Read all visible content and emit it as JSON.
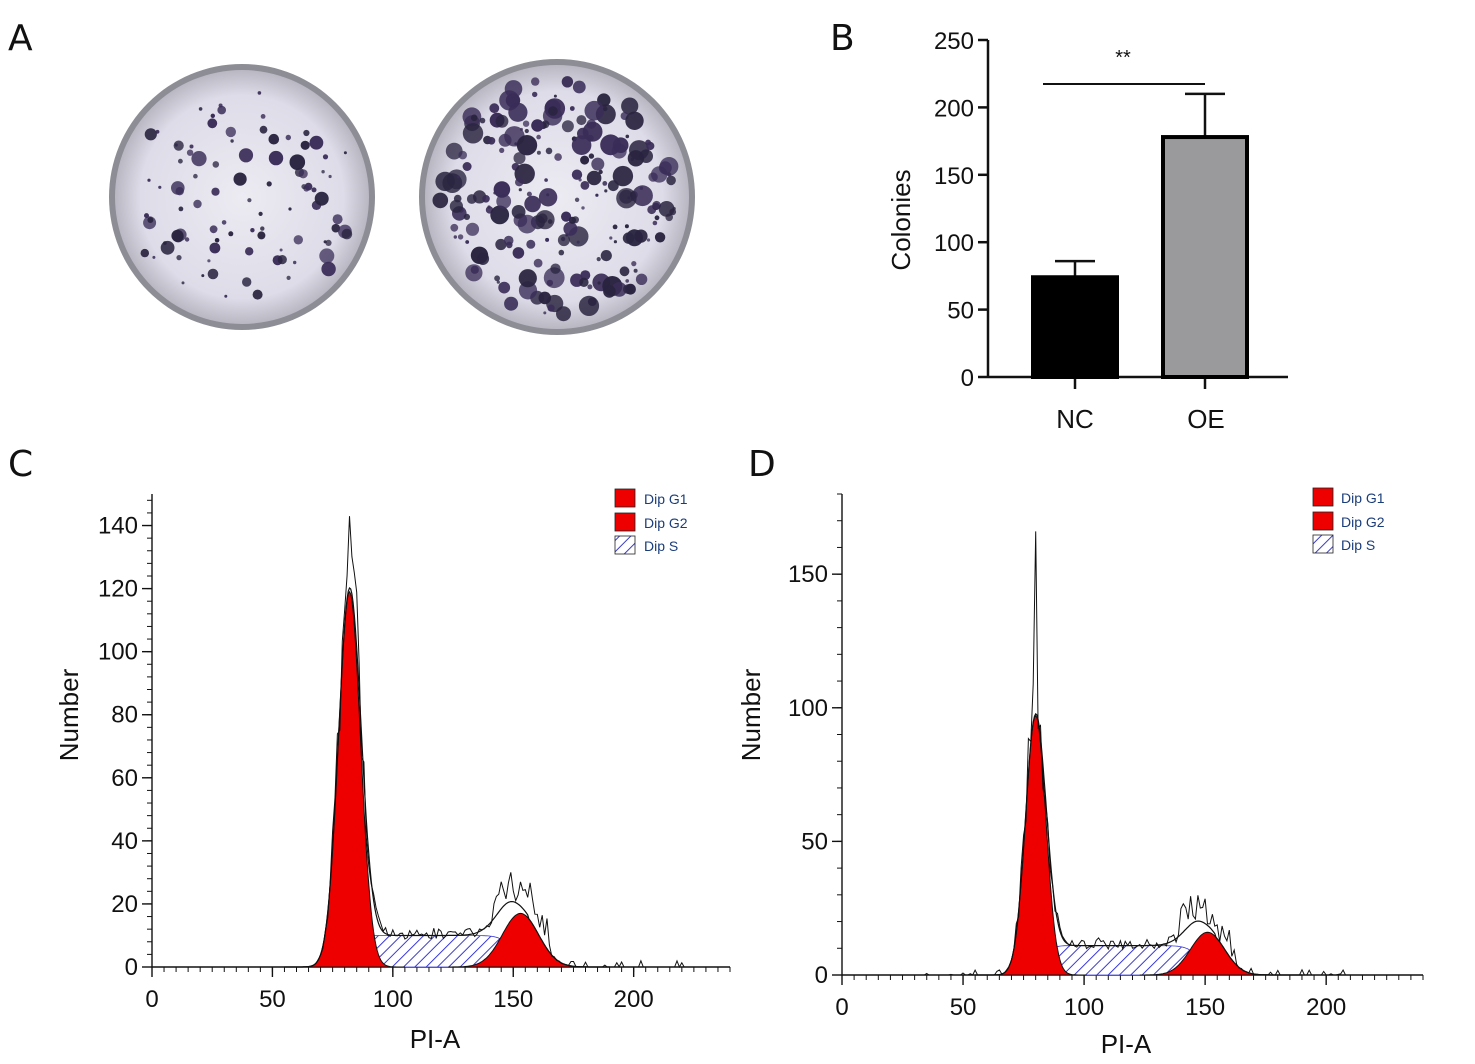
{
  "panel_labels": [
    "A",
    "B",
    "C",
    "D"
  ],
  "colors": {
    "plate_rim": "#9a9aa2",
    "plate_fill": "#e6e4ee",
    "colony": "#3a2d58",
    "nc_bar": "#000000",
    "oe_bar": "#9a9a9c",
    "peak_red": "#ee0000",
    "s_phase_hatch": "#3b3bd0",
    "legend_text": "#1a3d7a"
  },
  "plates": [
    {
      "name": "NC plate",
      "colony_level": "sparse"
    },
    {
      "name": "OE plate",
      "colony_level": "dense"
    }
  ],
  "chart_data": [
    {
      "panel": "B",
      "type": "bar",
      "categories": [
        "NC",
        "OE"
      ],
      "values": [
        74,
        178
      ],
      "errors": [
        12,
        32
      ],
      "ylabel": "Colonies",
      "xlabel": "",
      "ylim": [
        0,
        250
      ],
      "yticks": [
        0,
        50,
        100,
        150,
        200,
        250
      ],
      "significance": "**"
    },
    {
      "panel": "C",
      "type": "area",
      "xlabel": "PI-A",
      "ylabel": "Number",
      "xlim": [
        0,
        240
      ],
      "ylim": [
        0,
        150
      ],
      "xticks": [
        0,
        50,
        100,
        150,
        200
      ],
      "yticks": [
        0,
        20,
        40,
        60,
        80,
        100,
        120,
        140
      ],
      "legend": [
        "Dip G1",
        "Dip G2",
        "Dip S"
      ],
      "legend_position": "top-right",
      "g1": {
        "center": 82,
        "height": 119,
        "sigma": 4.6
      },
      "g2": {
        "center": 153,
        "height": 17,
        "sigma": 7.5
      },
      "s_phase": {
        "start": 85,
        "end": 150,
        "level": 10
      },
      "raw_peak": 143
    },
    {
      "panel": "D",
      "type": "area",
      "xlabel": "PI-A",
      "ylabel": "Number",
      "xlim": [
        0,
        240
      ],
      "ylim": [
        0,
        180
      ],
      "xticks": [
        0,
        50,
        100,
        150,
        200
      ],
      "yticks": [
        0,
        50,
        100,
        150
      ],
      "legend": [
        "Dip G1",
        "Dip G2",
        "Dip S"
      ],
      "legend_position": "top-right",
      "g1": {
        "center": 80,
        "height": 97,
        "sigma": 4.2
      },
      "g2": {
        "center": 151,
        "height": 16,
        "sigma": 7.0
      },
      "s_phase": {
        "start": 84,
        "end": 148,
        "level": 11
      },
      "raw_peak": 166
    }
  ]
}
